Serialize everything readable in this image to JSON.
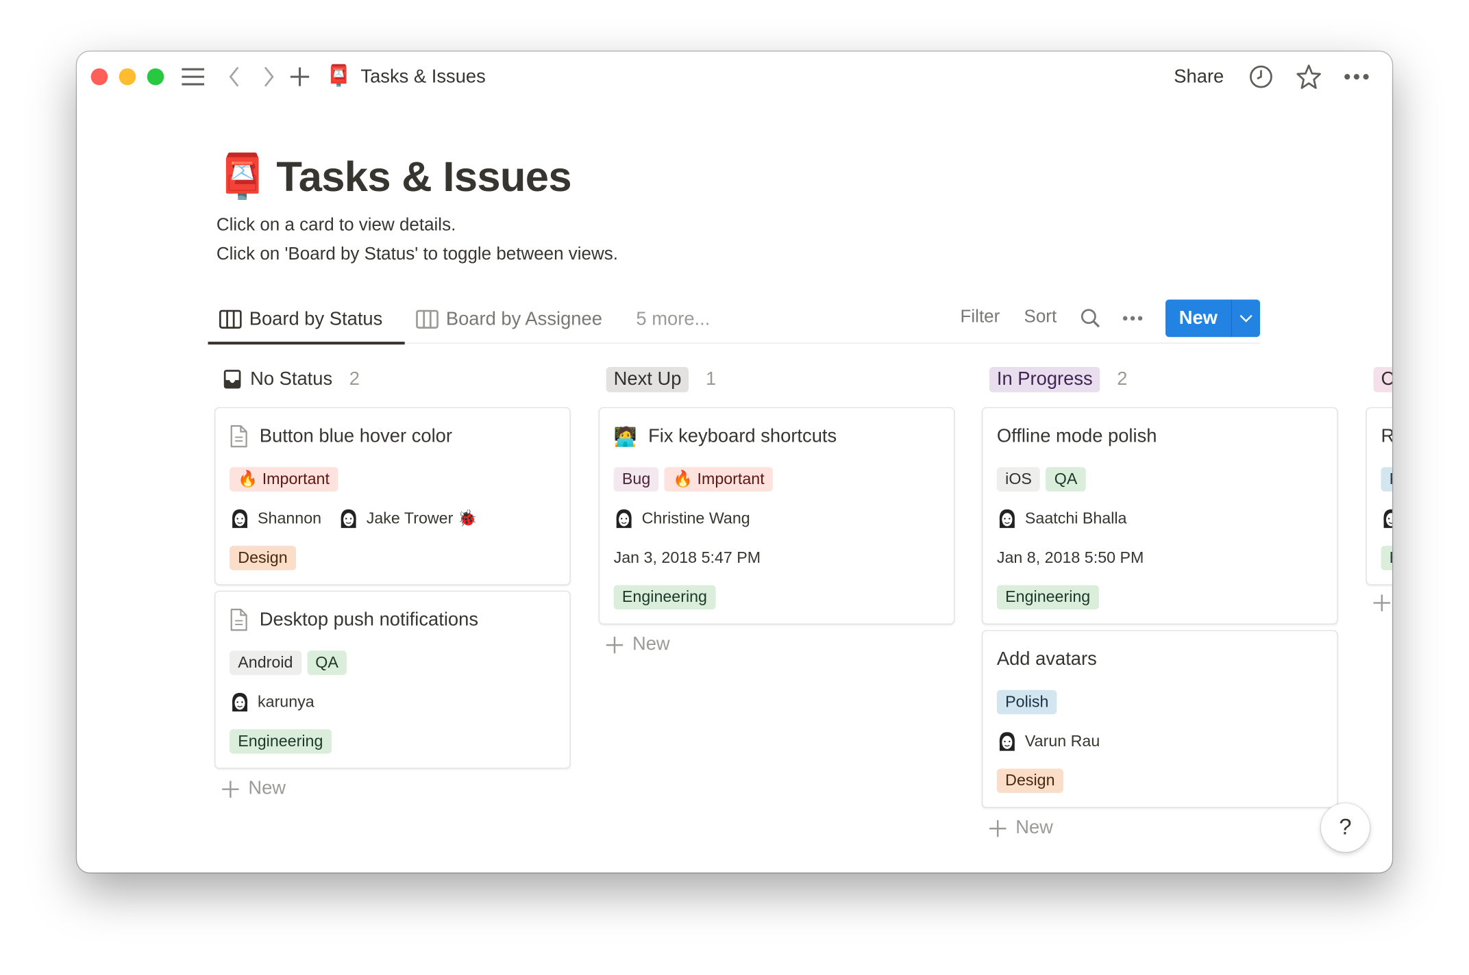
{
  "titlebar": {
    "title": "Tasks & Issues",
    "icon": "📮",
    "share": "Share"
  },
  "page": {
    "icon": "📮",
    "title": "Tasks & Issues",
    "desc1": "Click on a card to view details.",
    "desc2": "Click on 'Board by Status' to toggle between views."
  },
  "views": {
    "active": "Board by Status",
    "other": "Board by Assignee",
    "more": "5 more...",
    "filter": "Filter",
    "sort": "Sort",
    "new": "New"
  },
  "colors": {
    "accent": "#2383e2"
  },
  "columns": [
    {
      "name": "No Status",
      "count": "2",
      "bg": "transparent",
      "fg": "#37352f",
      "new": "New",
      "cards": [
        {
          "icon": "doc",
          "title": "Button blue hover color",
          "rows": [
            {
              "tags": [
                {
                  "label": "🔥 Important",
                  "bg": "#fde2dd",
                  "fg": "#5d1715"
                }
              ]
            },
            {
              "people": [
                {
                  "name": "Shannon"
                },
                {
                  "name": "Jake Trower 🐞"
                }
              ]
            },
            {
              "tags": [
                {
                  "label": "Design",
                  "bg": "#fadec9",
                  "fg": "#49290e"
                }
              ]
            }
          ]
        },
        {
          "icon": "doc",
          "title": "Desktop push notifications",
          "rows": [
            {
              "tags": [
                {
                  "label": "Android",
                  "bg": "#eeeeec",
                  "fg": "#32302c"
                },
                {
                  "label": "QA",
                  "bg": "#dbeddb",
                  "fg": "#1c3829"
                }
              ]
            },
            {
              "people": [
                {
                  "name": "karunya"
                }
              ]
            },
            {
              "tags": [
                {
                  "label": "Engineering",
                  "bg": "#dbeddb",
                  "fg": "#1c3829"
                }
              ]
            }
          ]
        }
      ]
    },
    {
      "name": "Next Up",
      "count": "1",
      "bg": "#e3e2e0",
      "fg": "#32302c",
      "new": "New",
      "cards": [
        {
          "icon": "🧑‍💻",
          "title": "Fix keyboard shortcuts",
          "rows": [
            {
              "tags": [
                {
                  "label": "Bug",
                  "bg": "#f4e8ef",
                  "fg": "#4c2337"
                },
                {
                  "label": "🔥 Important",
                  "bg": "#fde2dd",
                  "fg": "#5d1715"
                }
              ]
            },
            {
              "people": [
                {
                  "name": "Christine Wang"
                }
              ]
            },
            {
              "text": "Jan 3, 2018 5:47 PM"
            },
            {
              "tags": [
                {
                  "label": "Engineering",
                  "bg": "#dbeddb",
                  "fg": "#1c3829"
                }
              ]
            }
          ]
        }
      ]
    },
    {
      "name": "In Progress",
      "count": "2",
      "bg": "#e8deee",
      "fg": "#412454",
      "new": "New",
      "cards": [
        {
          "icon": "",
          "title": "Offline mode polish",
          "rows": [
            {
              "tags": [
                {
                  "label": "iOS",
                  "bg": "#eeeeec",
                  "fg": "#32302c"
                },
                {
                  "label": "QA",
                  "bg": "#dbeddb",
                  "fg": "#1c3829"
                }
              ]
            },
            {
              "people": [
                {
                  "name": "Saatchi Bhalla"
                }
              ]
            },
            {
              "text": "Jan 8, 2018 5:50 PM"
            },
            {
              "tags": [
                {
                  "label": "Engineering",
                  "bg": "#dbeddb",
                  "fg": "#1c3829"
                }
              ]
            }
          ]
        },
        {
          "icon": "",
          "title": "Add avatars",
          "rows": [
            {
              "tags": [
                {
                  "label": "Polish",
                  "bg": "#d3e5ef",
                  "fg": "#183347"
                }
              ]
            },
            {
              "people": [
                {
                  "name": "Varun Rau"
                }
              ]
            },
            {
              "tags": [
                {
                  "label": "Design",
                  "bg": "#fadec9",
                  "fg": "#49290e"
                }
              ]
            }
          ]
        }
      ]
    },
    {
      "name": "C",
      "count": "",
      "bg": "#f5e0e9",
      "fg": "#32302c",
      "new": "",
      "cards": [
        {
          "icon": "",
          "title": "Re",
          "rows": [
            {
              "tags": [
                {
                  "label": "P",
                  "bg": "#d3e5ef",
                  "fg": "#183347"
                }
              ]
            },
            {
              "people": [
                {
                  "name": ""
                }
              ]
            },
            {
              "tags": [
                {
                  "label": "E",
                  "bg": "#dbeddb",
                  "fg": "#1c3829"
                }
              ]
            }
          ]
        }
      ]
    }
  ],
  "help": "?"
}
